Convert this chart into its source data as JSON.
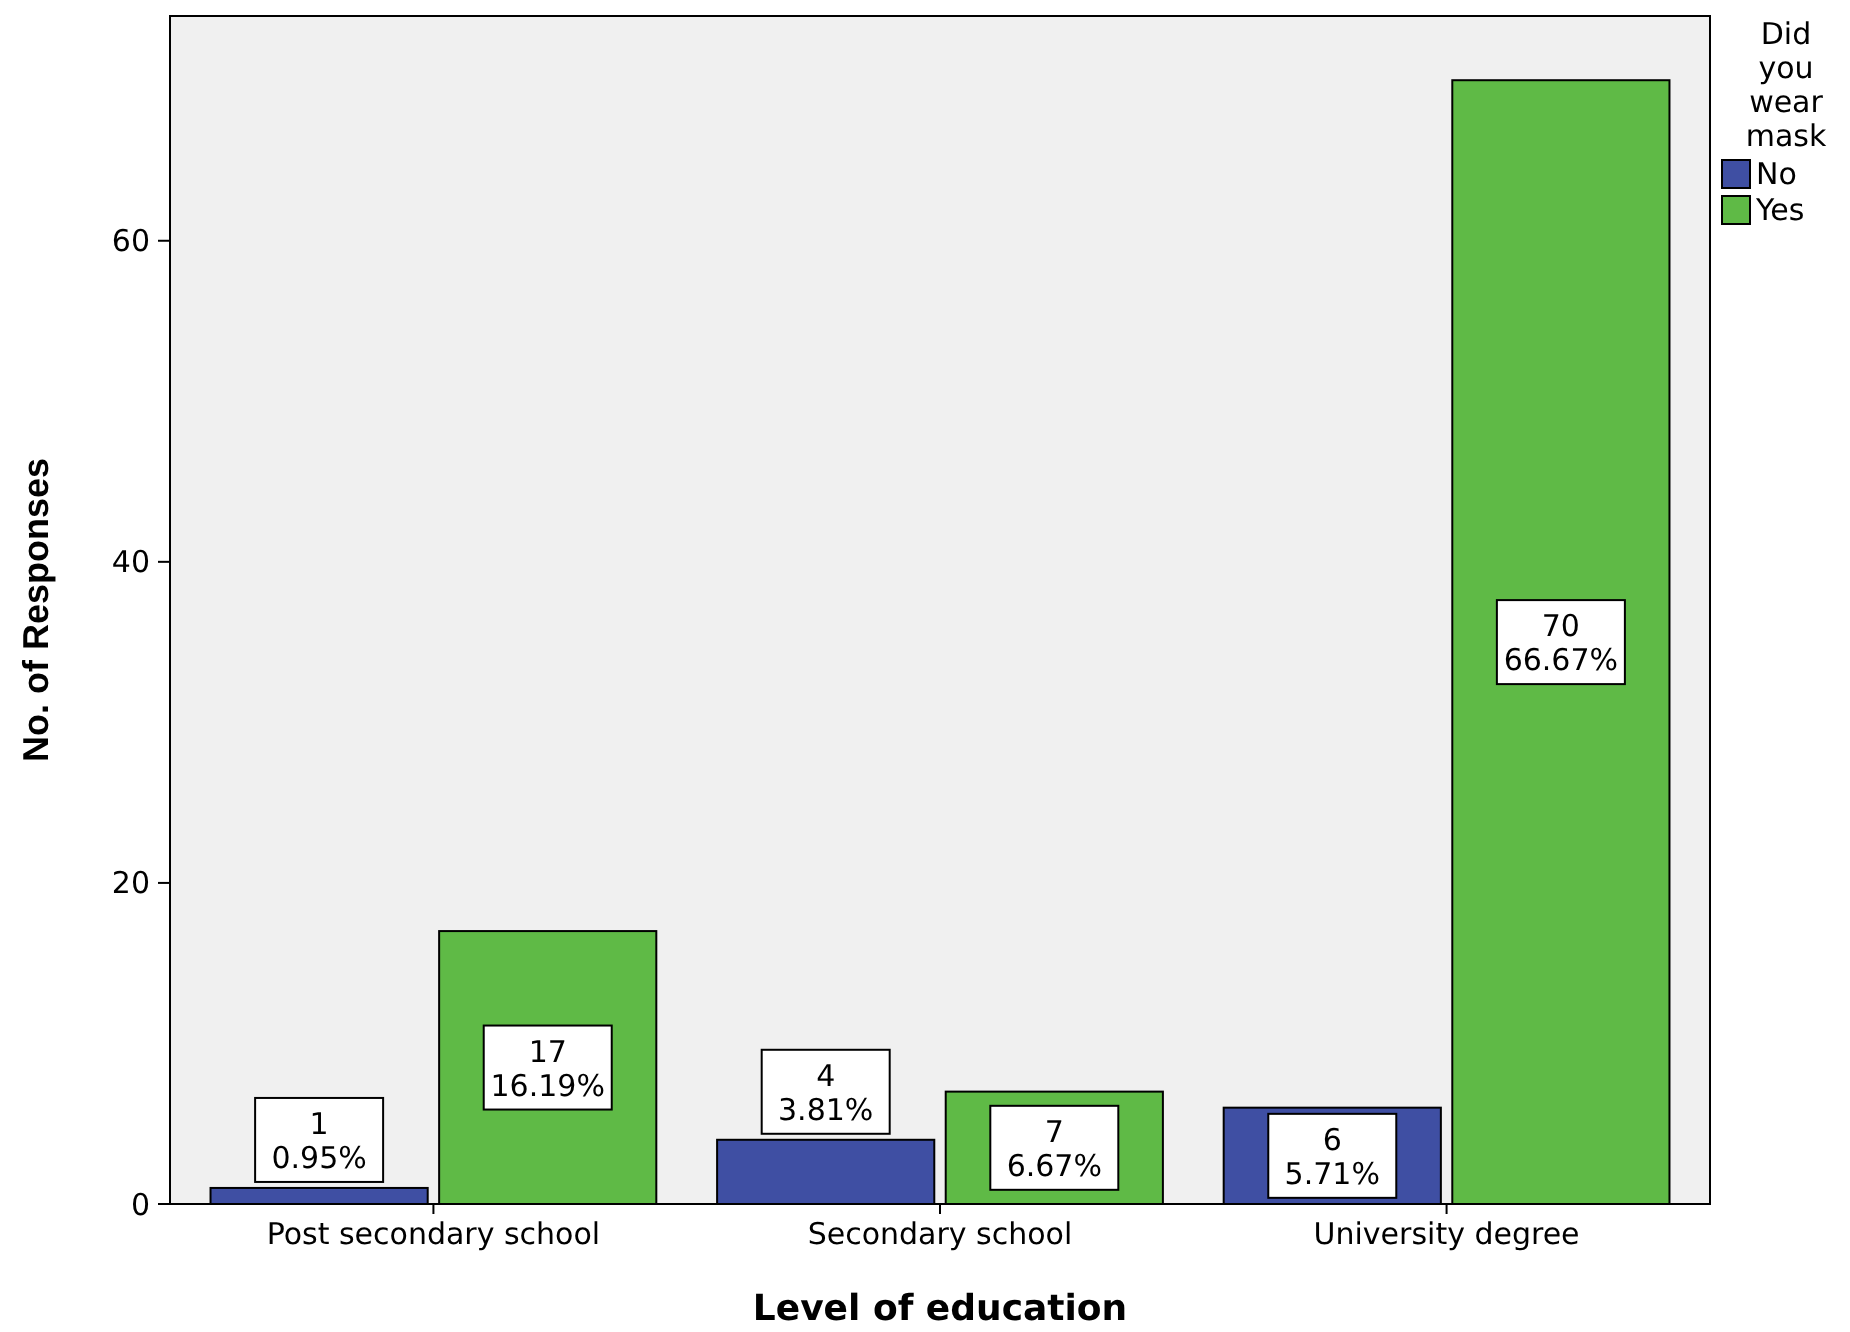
{
  "chart_data": {
    "type": "bar",
    "xlabel": "Level of education",
    "ylabel": "No. of Responses",
    "legend_title": "Did you wear mask",
    "categories": [
      "Post secondary school",
      "Secondary school",
      "University degree"
    ],
    "series": [
      {
        "name": "No",
        "color": "#3f4fa3",
        "values": [
          1,
          4,
          6
        ],
        "value_labels": [
          "1\n0.95%",
          "4\n3.81%",
          "6\n5.71%"
        ]
      },
      {
        "name": "Yes",
        "color": "#5fba46",
        "values": [
          17,
          7,
          70
        ],
        "value_labels": [
          "17\n16.19%",
          "7\n6.67%",
          "70\n66.67%"
        ]
      }
    ],
    "ylim": [
      0,
      74
    ],
    "yticks": [
      0,
      20,
      40,
      60
    ],
    "grid": false,
    "legend": "top right"
  }
}
